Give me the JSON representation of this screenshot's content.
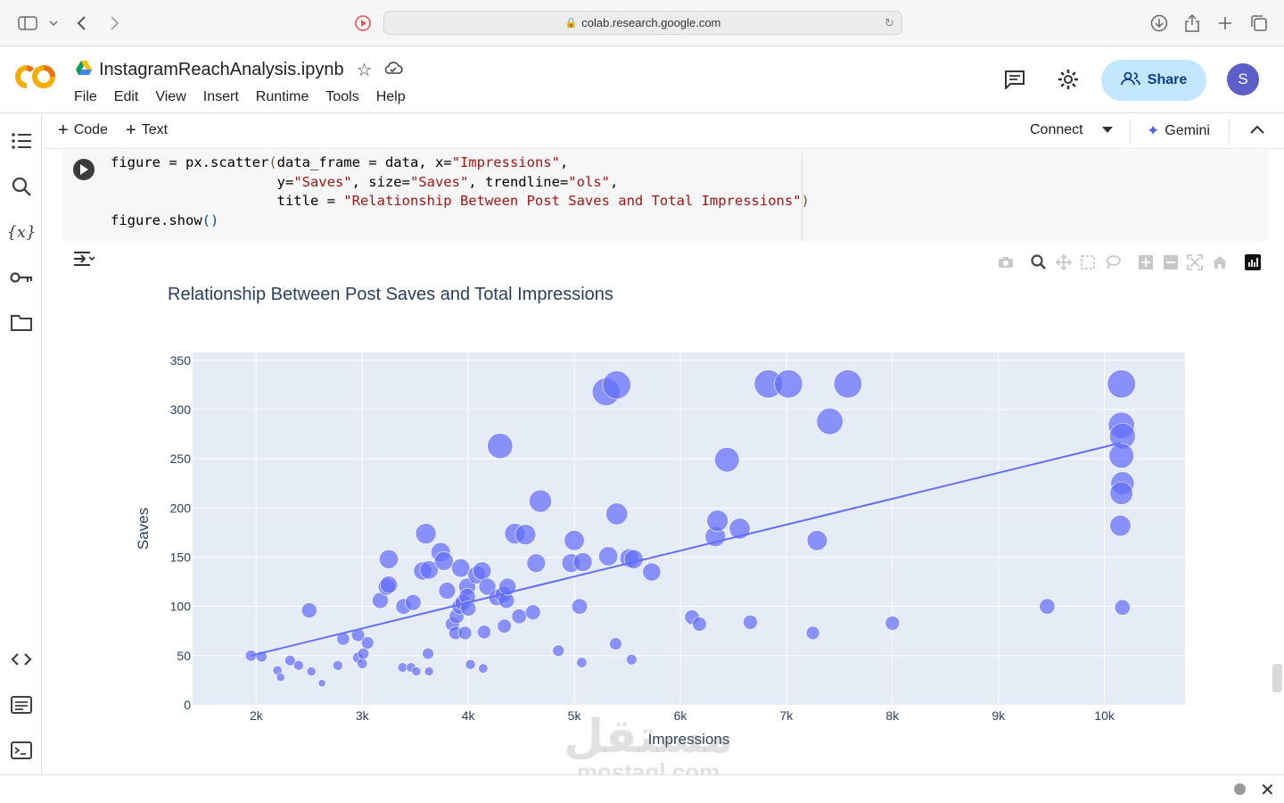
{
  "browser": {
    "url": "colab.research.google.com"
  },
  "notebook": {
    "title": "InstagramReachAnalysis.ipynb",
    "menu": [
      "File",
      "Edit",
      "View",
      "Insert",
      "Runtime",
      "Tools",
      "Help"
    ],
    "share_label": "Share",
    "avatar_letter": "S"
  },
  "toolbar": {
    "add_code": "Code",
    "add_text": "Text",
    "connect": "Connect",
    "gemini": "Gemini"
  },
  "cell": {
    "code_lines": [
      "figure = px.scatter(data_frame = data, x=\"Impressions\",",
      "                    y=\"Saves\", size=\"Saves\", trendline=\"ols\",",
      "                    title = \"Relationship Between Post Saves and Total Impressions\")",
      "figure.show()"
    ]
  },
  "colors": {
    "accent": "#636efa",
    "plot_bg": "#e5ecf6",
    "title": "#2a3f5f"
  },
  "watermark": {
    "arabic": "مستقل",
    "latin": "mostaql.com"
  },
  "chart_data": {
    "type": "scatter",
    "title": "Relationship Between Post Saves and Total Impressions",
    "xlabel": "Impressions",
    "ylabel": "Saves",
    "xlim": [
      1400,
      10760
    ],
    "ylim": [
      0,
      358
    ],
    "xticks": [
      2000,
      3000,
      4000,
      5000,
      6000,
      7000,
      8000,
      9000,
      10000
    ],
    "xtick_labels": [
      "2k",
      "3k",
      "4k",
      "5k",
      "6k",
      "7k",
      "8k",
      "9k",
      "10k"
    ],
    "yticks": [
      0,
      50,
      100,
      150,
      200,
      250,
      300,
      350
    ],
    "grid": true,
    "trendline": {
      "x": [
        1950,
        10150
      ],
      "y": [
        50,
        266
      ]
    },
    "points": [
      [
        1950,
        50
      ],
      [
        2050,
        49
      ],
      [
        2200,
        35
      ],
      [
        2230,
        28
      ],
      [
        2320,
        45
      ],
      [
        2400,
        40
      ],
      [
        2520,
        34
      ],
      [
        2620,
        22
      ],
      [
        2500,
        96
      ],
      [
        2770,
        40
      ],
      [
        2820,
        67
      ],
      [
        2960,
        71
      ],
      [
        2960,
        48
      ],
      [
        3000,
        42
      ],
      [
        3010,
        52
      ],
      [
        3050,
        63
      ],
      [
        3170,
        106
      ],
      [
        3230,
        120
      ],
      [
        3250,
        122
      ],
      [
        3250,
        148
      ],
      [
        3380,
        38
      ],
      [
        3390,
        100
      ],
      [
        3460,
        38
      ],
      [
        3480,
        104
      ],
      [
        3510,
        34
      ],
      [
        3570,
        136
      ],
      [
        3600,
        174
      ],
      [
        3620,
        52
      ],
      [
        3630,
        34
      ],
      [
        3630,
        137
      ],
      [
        3740,
        155
      ],
      [
        3770,
        146
      ],
      [
        3800,
        116
      ],
      [
        3850,
        82
      ],
      [
        3880,
        73
      ],
      [
        3890,
        90
      ],
      [
        3920,
        100
      ],
      [
        3930,
        139
      ],
      [
        3950,
        104
      ],
      [
        3970,
        73
      ],
      [
        3990,
        120
      ],
      [
        3990,
        110
      ],
      [
        4000,
        98
      ],
      [
        4020,
        41
      ],
      [
        4080,
        132
      ],
      [
        4130,
        136
      ],
      [
        4140,
        37
      ],
      [
        4150,
        74
      ],
      [
        4180,
        120
      ],
      [
        4270,
        109
      ],
      [
        4300,
        263
      ],
      [
        4330,
        112
      ],
      [
        4340,
        80
      ],
      [
        4360,
        106
      ],
      [
        4370,
        120
      ],
      [
        4440,
        174
      ],
      [
        4480,
        90
      ],
      [
        4540,
        173
      ],
      [
        4610,
        94
      ],
      [
        4640,
        144
      ],
      [
        4680,
        207
      ],
      [
        4850,
        55
      ],
      [
        4970,
        144
      ],
      [
        5000,
        167
      ],
      [
        5050,
        100
      ],
      [
        5070,
        43
      ],
      [
        5080,
        145
      ],
      [
        5300,
        318
      ],
      [
        5320,
        151
      ],
      [
        5390,
        62
      ],
      [
        5400,
        325
      ],
      [
        5400,
        194
      ],
      [
        5520,
        149
      ],
      [
        5560,
        148
      ],
      [
        5540,
        46
      ],
      [
        5730,
        135
      ],
      [
        6110,
        89
      ],
      [
        6180,
        82
      ],
      [
        6330,
        171
      ],
      [
        6350,
        187
      ],
      [
        6440,
        249
      ],
      [
        6560,
        179
      ],
      [
        6660,
        84
      ],
      [
        6830,
        326
      ],
      [
        7020,
        326
      ],
      [
        7250,
        73
      ],
      [
        7290,
        167
      ],
      [
        7410,
        288
      ],
      [
        7580,
        326
      ],
      [
        8000,
        83
      ],
      [
        9460,
        100
      ],
      [
        10160,
        326
      ],
      [
        10160,
        284
      ],
      [
        10170,
        273
      ],
      [
        10160,
        253
      ],
      [
        10170,
        225
      ],
      [
        10160,
        215
      ],
      [
        10150,
        182
      ],
      [
        10170,
        99
      ]
    ]
  }
}
